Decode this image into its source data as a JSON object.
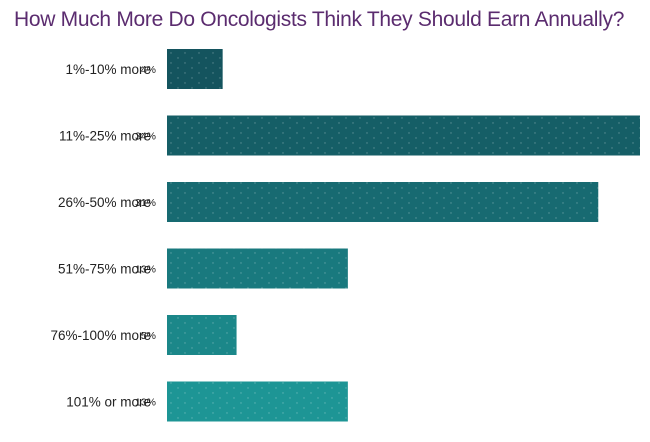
{
  "chart_data": {
    "type": "bar",
    "orientation": "horizontal",
    "title": "How Much More Do Oncologists Think They Should Earn Annually?",
    "categories": [
      "1%-10% more",
      "11%-25% more",
      "26%-50% more",
      "51%-75% more",
      "76%-100% more",
      "101% or more"
    ],
    "values": [
      4,
      34,
      31,
      13,
      5,
      13
    ],
    "value_labels": [
      "4%",
      "34%",
      "31%",
      "13%",
      "5%",
      "13%"
    ],
    "xlim": [
      0,
      34
    ],
    "grid": false,
    "legend": "none"
  },
  "colors": {
    "title": "#5b2c6f",
    "bars": [
      "#14545e",
      "#155e66",
      "#176a71",
      "#19797e",
      "#1b8789",
      "#1d9595"
    ],
    "texture": "#ffffff"
  }
}
